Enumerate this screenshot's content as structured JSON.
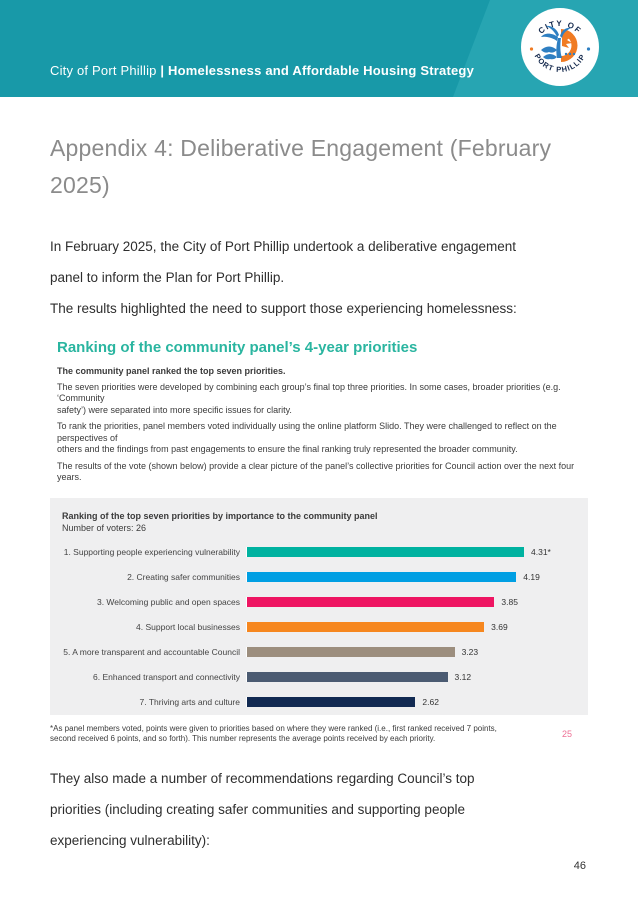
{
  "colors": {
    "header_teal": "#1899a8",
    "header_teal_light": "#27a5b2",
    "section_heading_teal": "#2ab5a0",
    "chart_background": "#efeff0",
    "inner_page_number_pink": "#ee7095",
    "heading_gray": "#8b8b8b",
    "logo_blue": "#2e7fc2",
    "logo_orange": "#f07b23",
    "logo_navy": "#13284c"
  },
  "header": {
    "title_regular": "City of Port Phillip ",
    "title_bold": "| Homelessness and Affordable Housing Strategy",
    "logo": {
      "arc_top": "CITY OF",
      "arc_bottom": "PORT PHILLIP"
    }
  },
  "content": {
    "heading": "Appendix 4: Deliberative Engagement (February 2025)",
    "intro_paragraph": "In February 2025, the City of Port Phillip undertook a deliberative engagement\npanel to inform the Plan for Port Phillip.",
    "intro_paragraph_2": "The results highlighted the need to support those experiencing homelessness:",
    "closing_paragraph": "They also made a number of recommendations regarding Council’s top\npriorities (including creating safer communities and supporting people\nexperiencing vulnerability):",
    "page_number": "46"
  },
  "section": {
    "heading": "Ranking of the community panel’s 4-year priorities",
    "lead": "The community panel ranked the top seven priorities.",
    "paragraphs": [
      "The seven priorities were developed by combining each group’s final top three priorities. In some cases, broader priorities (e.g. ‘Community\nsafety’) were separated into more specific issues for clarity.",
      "To rank the priorities, panel members voted individually using the online platform Slido. They were challenged to reflect on the perspectives of\nothers and the findings from past engagements to ensure the final ranking truly represented the broader community.",
      "The results of the vote (shown below) provide a clear picture of the panel’s collective priorities for Council action over the next four years."
    ],
    "footnote": "*As panel members voted, points were given to priorities based on where they were ranked (i.e., first ranked received 7 points,\nsecond received 6 points, and so forth). This number represents the average points received by each priority.",
    "inner_page_number": "25"
  },
  "chart_data": {
    "type": "bar",
    "orientation": "horizontal",
    "title": "Ranking of the top seven priorities by importance to the community panel",
    "subtitle": "Number of voters: 26",
    "categories": [
      "1. Supporting people experiencing vulnerability",
      "2. Creating safer communities",
      "3. Welcoming public and open spaces",
      "4. Support local businesses",
      "5. A more transparent and accountable Council",
      "6. Enhanced transport and connectivity",
      "7. Thriving arts and culture"
    ],
    "values": [
      4.31,
      4.19,
      3.85,
      3.69,
      3.23,
      3.12,
      2.62
    ],
    "value_labels": [
      "4.31*",
      "4.19",
      "3.85",
      "3.69",
      "3.23",
      "3.12",
      "2.62"
    ],
    "bar_colors": [
      "#00b2a0",
      "#009fe3",
      "#ee1562",
      "#f6871f",
      "#9c8e7e",
      "#4b5b72",
      "#122a52"
    ],
    "xlim": [
      0,
      4.31
    ],
    "grid": false,
    "legend": "none"
  }
}
